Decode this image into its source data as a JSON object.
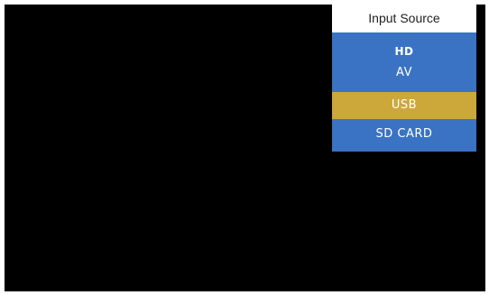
{
  "menu": {
    "title": "Input Source",
    "items": [
      {
        "label": "HD",
        "selected": false
      },
      {
        "label": "AV",
        "selected": false
      },
      {
        "label": "USB",
        "selected": true
      },
      {
        "label": "SD CARD",
        "selected": false
      }
    ]
  },
  "colors": {
    "screen_background": "#000000",
    "menu_background": "#3a73c3",
    "selected_item": "#cca83b",
    "title_background": "#ffffff"
  }
}
